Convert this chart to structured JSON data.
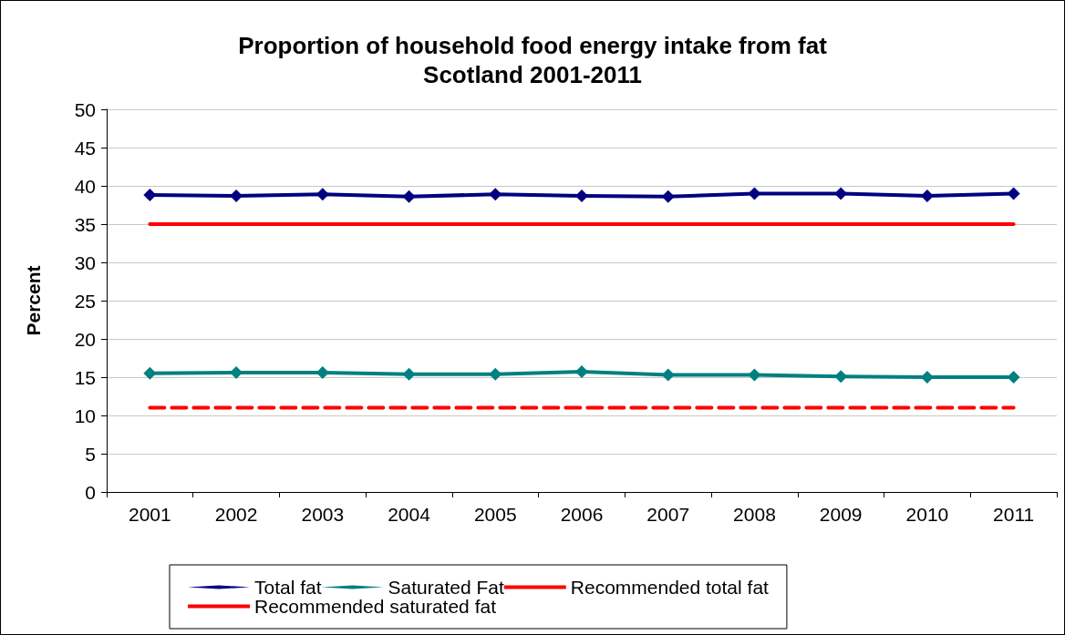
{
  "chart_data": {
    "type": "line",
    "title": "Proportion of household food energy intake from fat\nScotland 2001-2011",
    "ylabel": "Percent",
    "categories": [
      "2001",
      "2002",
      "2003",
      "2004",
      "2005",
      "2006",
      "2007",
      "2008",
      "2009",
      "2010",
      "2011"
    ],
    "series": [
      {
        "name": "Total fat",
        "color": "#000080",
        "marker": "diamond",
        "line_style": "solid",
        "values": [
          38.8,
          38.7,
          38.9,
          38.6,
          38.9,
          38.7,
          38.6,
          39.0,
          39.0,
          38.7,
          39.0
        ]
      },
      {
        "name": "Saturated Fat",
        "color": "#008080",
        "marker": "diamond",
        "line_style": "solid",
        "values": [
          15.5,
          15.6,
          15.6,
          15.4,
          15.4,
          15.7,
          15.3,
          15.3,
          15.1,
          15.0,
          15.0
        ]
      },
      {
        "name": "Recommended total fat",
        "color": "#ff0000",
        "marker": "none",
        "line_style": "solid",
        "values": [
          35,
          35,
          35,
          35,
          35,
          35,
          35,
          35,
          35,
          35,
          35
        ]
      },
      {
        "name": "Recommended saturated fat",
        "color": "#ff0000",
        "marker": "none",
        "line_style": "dashed",
        "values": [
          11,
          11,
          11,
          11,
          11,
          11,
          11,
          11,
          11,
          11,
          11
        ]
      }
    ],
    "ylim": [
      0,
      50
    ],
    "yticks": [
      0,
      5,
      10,
      15,
      20,
      25,
      30,
      35,
      40,
      45,
      50
    ],
    "grid": "y",
    "legend": "bottom"
  }
}
